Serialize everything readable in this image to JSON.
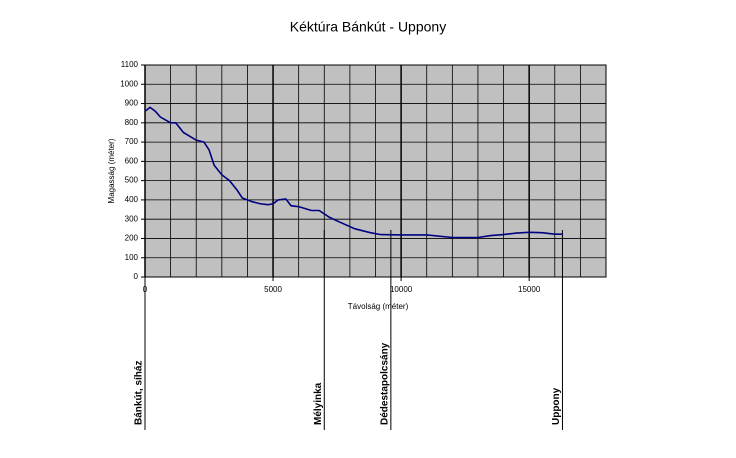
{
  "chart_data": {
    "type": "line",
    "title": "Kéktúra Bánkút - Uppony",
    "xlabel": "Távolság (méter)",
    "ylabel": "Magasság (méter)",
    "x": [
      0,
      200,
      400,
      600,
      1000,
      1200,
      1500,
      2000,
      2300,
      2500,
      2700,
      3000,
      3300,
      3600,
      3800,
      4200,
      4500,
      4800,
      5000,
      5200,
      5500,
      5700,
      6000,
      6500,
      6800,
      7200,
      7600,
      8200,
      8800,
      9200,
      10000,
      11000,
      12000,
      13000,
      13500,
      14000,
      14500,
      15000,
      15500,
      16000,
      16300
    ],
    "series": [
      {
        "name": "Magasság",
        "color": "#000080",
        "values": [
          860,
          880,
          860,
          830,
          800,
          800,
          750,
          710,
          700,
          660,
          580,
          530,
          500,
          450,
          410,
          390,
          380,
          375,
          380,
          400,
          405,
          370,
          365,
          345,
          345,
          310,
          285,
          250,
          230,
          220,
          218,
          218,
          205,
          205,
          215,
          220,
          228,
          232,
          230,
          222,
          222
        ]
      }
    ],
    "xlim": [
      0,
      18000
    ],
    "ylim": [
      0,
      1100
    ],
    "xticks": [
      0,
      5000,
      10000,
      15000
    ],
    "yticks": [
      0,
      100,
      200,
      300,
      400,
      500,
      600,
      700,
      800,
      900,
      1000,
      1100
    ],
    "x_gridlines": [
      1000,
      2000,
      3000,
      4000,
      6000,
      7000,
      8000,
      9000,
      11000,
      12000,
      13000,
      14000,
      16000,
      17000
    ],
    "grid": true,
    "plot_background": "#c0c0c0",
    "waypoints": [
      {
        "label": "Bánkút, síház",
        "x": 0
      },
      {
        "label": "Mélyinka",
        "x": 7000
      },
      {
        "label": "Dédestapolcsány",
        "x": 9600
      },
      {
        "label": "Uppony",
        "x": 16300
      }
    ]
  }
}
